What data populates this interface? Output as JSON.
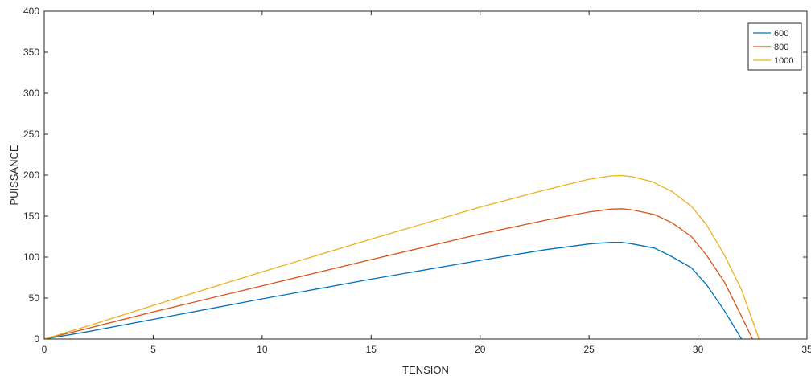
{
  "chart_data": {
    "type": "line",
    "title": "",
    "xlabel": "TENSION",
    "ylabel": "PUISSANCE",
    "xlim": [
      0,
      35
    ],
    "ylim": [
      0,
      400
    ],
    "xticks": [
      "0",
      "5",
      "10",
      "15",
      "20",
      "25",
      "30",
      "35"
    ],
    "yticks": [
      "0",
      "50",
      "100",
      "150",
      "200",
      "250",
      "300",
      "350",
      "400"
    ],
    "grid": false,
    "legend_position": "top-right",
    "series": [
      {
        "name": "600",
        "color": "#0072BD",
        "points": [
          [
            0,
            0
          ],
          [
            2,
            9
          ],
          [
            5,
            24
          ],
          [
            10,
            49
          ],
          [
            15,
            73
          ],
          [
            20,
            96
          ],
          [
            23,
            109
          ],
          [
            25,
            116
          ],
          [
            26,
            118
          ],
          [
            26.5,
            118
          ],
          [
            27,
            116
          ],
          [
            28,
            111
          ],
          [
            28.7,
            102
          ],
          [
            29.7,
            87
          ],
          [
            30.4,
            66
          ],
          [
            31.2,
            35
          ],
          [
            32,
            0
          ]
        ]
      },
      {
        "name": "800",
        "color": "#D95319",
        "points": [
          [
            0,
            0
          ],
          [
            2,
            13
          ],
          [
            5,
            33
          ],
          [
            10,
            65
          ],
          [
            15,
            97
          ],
          [
            20,
            128
          ],
          [
            23,
            145
          ],
          [
            25,
            155
          ],
          [
            26,
            158.5
          ],
          [
            26.5,
            159
          ],
          [
            27,
            157.5
          ],
          [
            28,
            152
          ],
          [
            28.8,
            142
          ],
          [
            29.7,
            125
          ],
          [
            30.4,
            102
          ],
          [
            31.2,
            70
          ],
          [
            31.9,
            33
          ],
          [
            32.5,
            0
          ]
        ]
      },
      {
        "name": "1000",
        "color": "#EDB120",
        "points": [
          [
            0,
            0
          ],
          [
            2,
            16
          ],
          [
            5,
            41
          ],
          [
            10,
            82
          ],
          [
            15,
            122
          ],
          [
            20,
            161
          ],
          [
            23,
            182
          ],
          [
            25,
            195
          ],
          [
            26,
            199
          ],
          [
            26.5,
            199.5
          ],
          [
            27,
            198
          ],
          [
            27.9,
            192
          ],
          [
            28.8,
            180
          ],
          [
            29.7,
            162
          ],
          [
            30.4,
            139
          ],
          [
            31.2,
            103
          ],
          [
            32,
            60
          ],
          [
            32.8,
            0
          ]
        ]
      }
    ]
  }
}
